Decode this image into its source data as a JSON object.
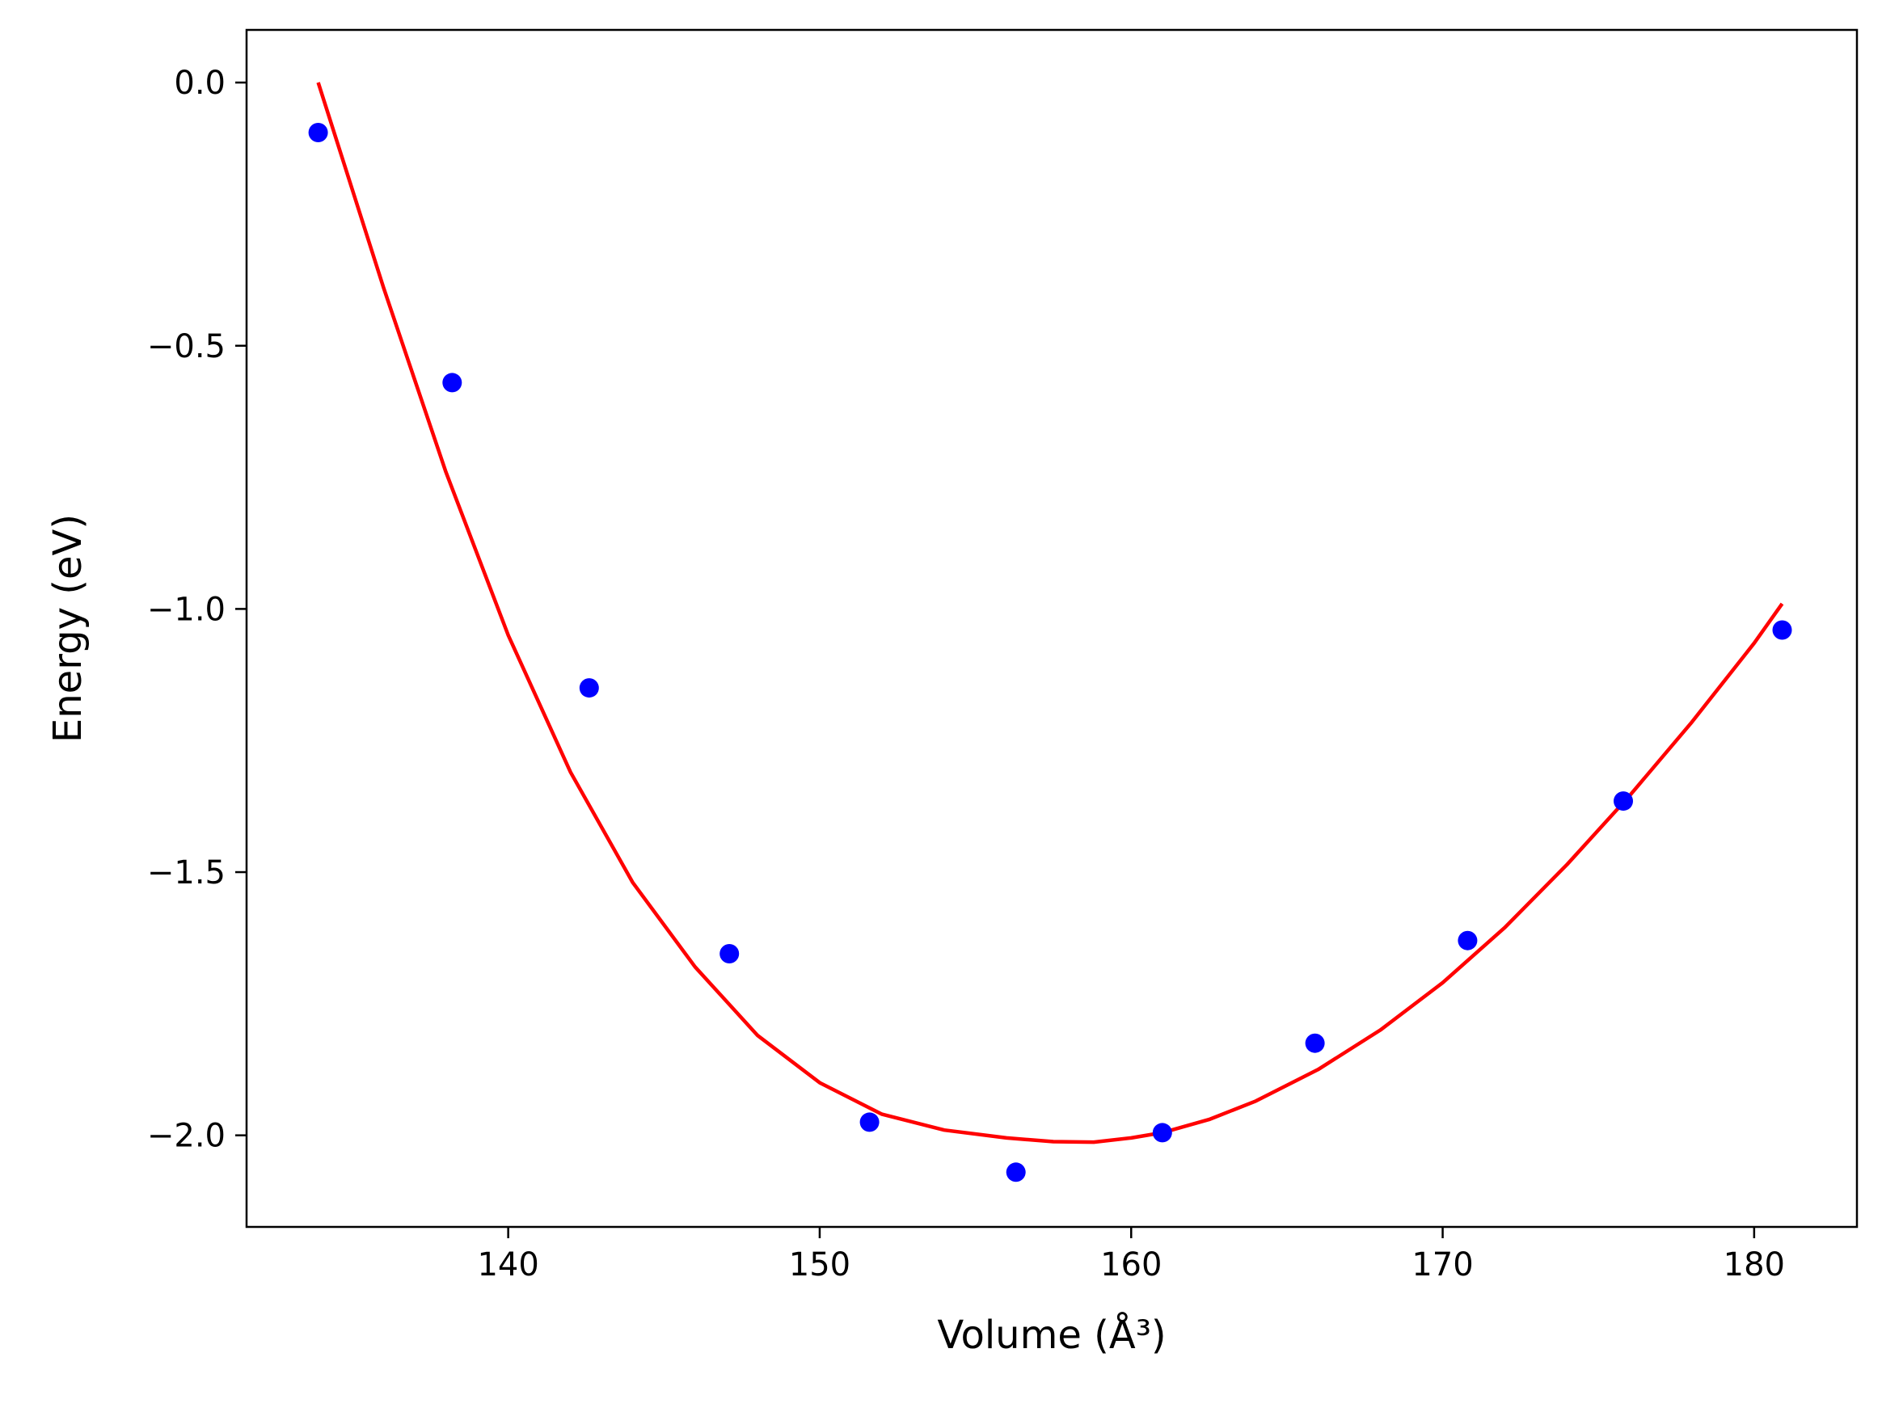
{
  "chart_data": {
    "type": "scatter",
    "title": "",
    "xlabel": "Volume (Å³)",
    "ylabel": "Energy (eV)",
    "xlim": [
      131.6,
      183.3
    ],
    "ylim": [
      -2.174,
      0.1
    ],
    "xticks": [
      140,
      150,
      160,
      170,
      180
    ],
    "yticks": [
      0.0,
      -0.5,
      -1.0,
      -1.5,
      -2.0
    ],
    "xtick_labels": [
      "140",
      "150",
      "160",
      "170",
      "180"
    ],
    "ytick_labels": [
      "0.0",
      "−0.5",
      "−1.0",
      "−1.5",
      "−2.0"
    ],
    "grid": false,
    "legend": "none",
    "series": [
      {
        "kind": "points",
        "color": "#0000ff",
        "x": [
          133.9,
          138.2,
          142.6,
          147.1,
          151.6,
          156.3,
          161.0,
          165.9,
          170.8,
          175.8,
          180.9
        ],
        "y": [
          -0.095,
          -0.57,
          -1.15,
          -1.655,
          -1.975,
          -2.07,
          -1.995,
          -1.825,
          -1.63,
          -1.365,
          -1.04
        ]
      },
      {
        "kind": "fit-line",
        "color": "#ff0000",
        "x": [
          133.9,
          136.0,
          138.0,
          140.0,
          142.0,
          144.0,
          146.0,
          148.0,
          150.0,
          152.0,
          154.0,
          156.0,
          157.5,
          158.8,
          160.0,
          161.0,
          162.5,
          164.0,
          166.0,
          168.0,
          170.0,
          172.0,
          174.0,
          176.0,
          178.0,
          180.0,
          180.9
        ],
        "y": [
          0.0,
          -0.39,
          -0.74,
          -1.05,
          -1.31,
          -1.52,
          -1.68,
          -1.81,
          -1.9,
          -1.96,
          -1.99,
          -2.005,
          -2.012,
          -2.013,
          -2.005,
          -1.995,
          -1.97,
          -1.935,
          -1.875,
          -1.8,
          -1.71,
          -1.605,
          -1.485,
          -1.355,
          -1.215,
          -1.065,
          -0.99
        ]
      }
    ]
  }
}
